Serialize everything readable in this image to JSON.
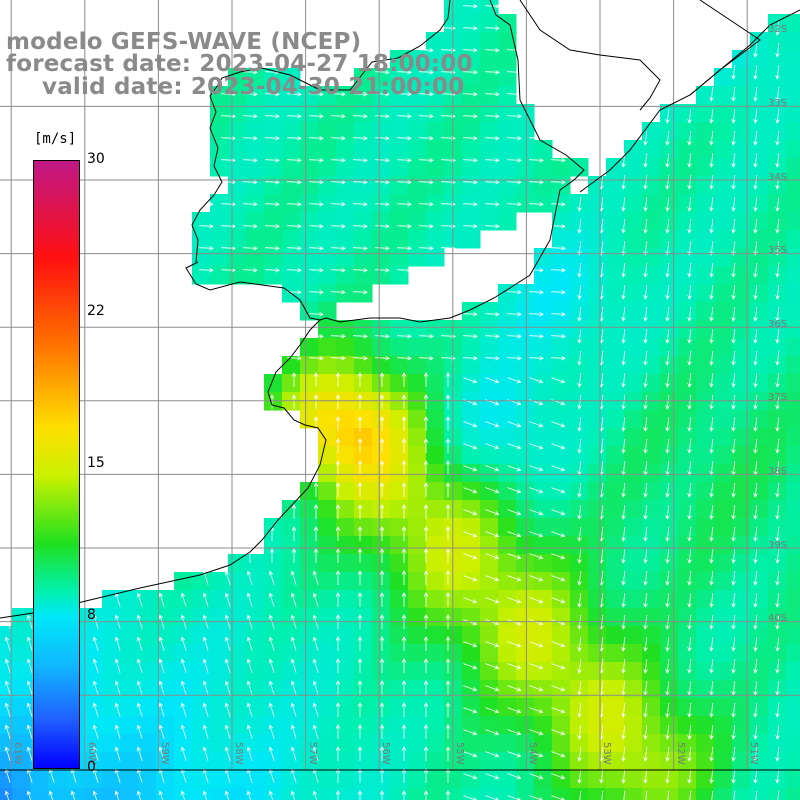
{
  "title": {
    "line1": "modelo GEFS-WAVE (NCEP)",
    "line2": "forecast date: 2023-04-27 18:00:00",
    "line3": "valid date: 2023-04-30 21:00:00"
  },
  "colorbar": {
    "units": "[m/s]",
    "min": 0,
    "max": 30,
    "ticks": [
      "30",
      "22",
      "15",
      "8",
      "0"
    ],
    "tick_values": [
      30,
      22,
      15,
      8,
      0
    ],
    "colors": [
      "#0000ff",
      "#2060ff",
      "#10b8ff",
      "#00e8f8",
      "#00f0b0",
      "#20e020",
      "#c8f000",
      "#ffe000",
      "#ff7000",
      "#ff1010",
      "#c01888"
    ]
  },
  "lat_labels": [
    {
      "text": "32S",
      "value": -32
    },
    {
      "text": "33S",
      "value": -33
    },
    {
      "text": "34S",
      "value": -34
    },
    {
      "text": "35S",
      "value": -35
    },
    {
      "text": "36S",
      "value": -36
    },
    {
      "text": "37S",
      "value": -37
    },
    {
      "text": "38S",
      "value": -38
    },
    {
      "text": "39S",
      "value": -39
    },
    {
      "text": "40S",
      "value": -40
    }
  ],
  "lon_labels": [
    {
      "text": "61W",
      "value": -61
    },
    {
      "text": "60W",
      "value": -60
    },
    {
      "text": "59W",
      "value": -59
    },
    {
      "text": "58W",
      "value": -58
    },
    {
      "text": "57W",
      "value": -57
    },
    {
      "text": "56W",
      "value": -56
    },
    {
      "text": "55W",
      "value": -55
    },
    {
      "text": "54W",
      "value": -54
    },
    {
      "text": "53W",
      "value": -53
    },
    {
      "text": "52W",
      "value": -52
    },
    {
      "text": "51W",
      "value": -51
    }
  ],
  "map": {
    "grid_color": "#8c8c8c",
    "coast_color": "#000000",
    "arrow_color": "#ffffff",
    "land_color": "#ffffff"
  }
}
